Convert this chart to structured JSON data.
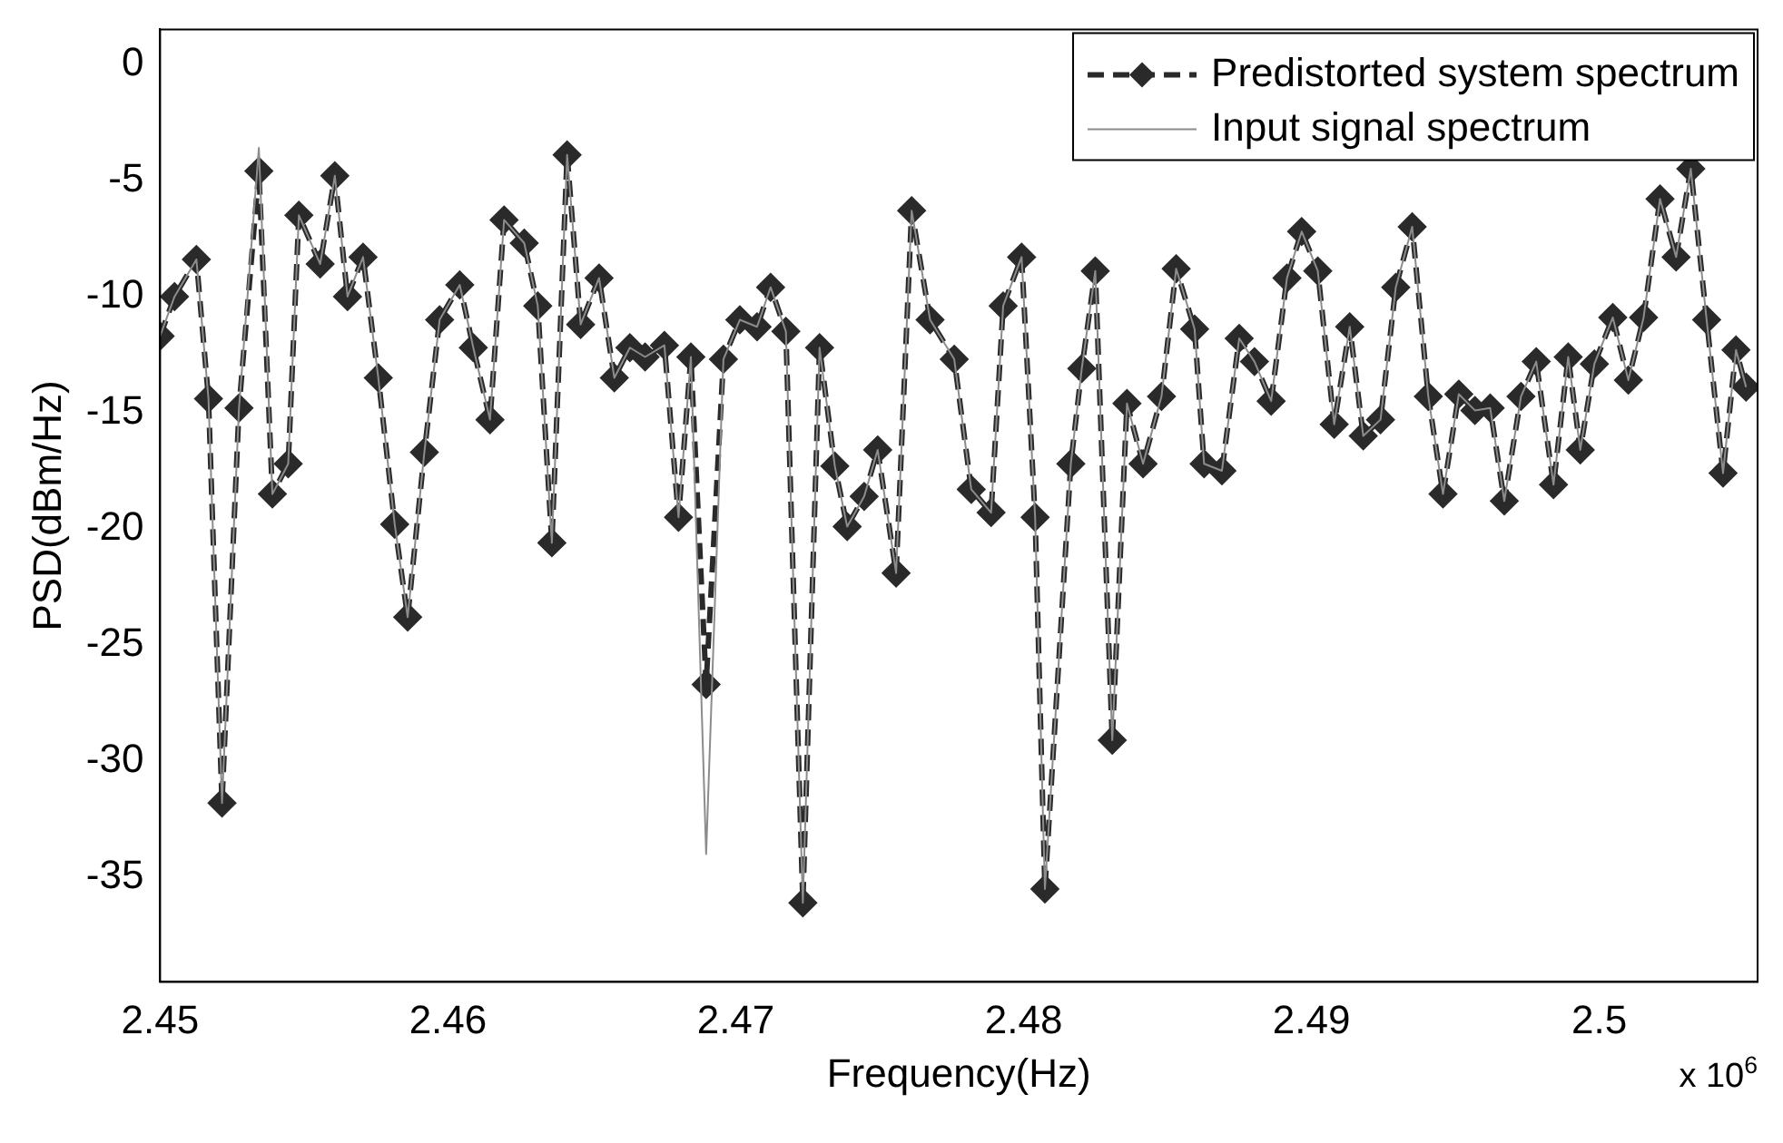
{
  "chart_data": {
    "type": "line",
    "xlabel": "Frequency(Hz)",
    "ylabel": "PSD(dBm/Hz)",
    "x": [
      2.45,
      2.4505,
      2.45126,
      2.45168,
      2.45215,
      2.45274,
      2.45343,
      2.4539,
      2.45445,
      2.45482,
      2.45556,
      2.45607,
      2.45651,
      2.45705,
      2.45758,
      2.45815,
      2.4586,
      2.45918,
      2.45971,
      2.46041,
      2.46088,
      2.46146,
      2.46195,
      2.46265,
      2.46312,
      2.46361,
      2.46414,
      2.46461,
      2.46525,
      2.46578,
      2.46632,
      2.46685,
      2.46752,
      2.46801,
      2.46844,
      2.46897,
      2.46957,
      2.47014,
      2.47074,
      2.47121,
      2.47174,
      2.47233,
      2.47291,
      2.47344,
      2.47387,
      2.47446,
      2.47493,
      2.47557,
      2.47611,
      2.47675,
      2.47759,
      2.47818,
      2.47887,
      2.47929,
      2.47993,
      2.4804,
      2.48074,
      2.48164,
      2.48202,
      2.48249,
      2.48308,
      2.48359,
      2.48415,
      2.48479,
      2.4853,
      2.48594,
      2.48627,
      2.48689,
      2.48749,
      2.48802,
      2.4886,
      2.48915,
      2.48966,
      2.49022,
      2.49079,
      2.49133,
      2.4918,
      2.4924,
      2.49293,
      2.4935,
      2.49406,
      2.49457,
      2.49512,
      2.49568,
      2.49621,
      2.4967,
      2.49728,
      2.49781,
      2.49841,
      2.49892,
      2.49934,
      2.49983,
      2.50047,
      2.50101,
      2.50154,
      2.50211,
      2.50267,
      2.50318,
      2.50373,
      2.5043,
      2.50475,
      2.5051
    ],
    "series": [
      {
        "name": "Predistorted system spectrum",
        "color": "#2a2a2a",
        "marker": "diamond",
        "line_style": "dashed",
        "values": [
          -11.7,
          -10.0,
          -8.4,
          -14.4,
          -31.8,
          -14.8,
          -4.6,
          -18.5,
          -17.2,
          -6.5,
          -8.6,
          -4.8,
          -10.0,
          -8.3,
          -13.5,
          -19.8,
          -23.8,
          -16.7,
          -11.0,
          -9.5,
          -12.2,
          -15.3,
          -6.7,
          -7.7,
          -10.4,
          -20.6,
          -3.9,
          -11.2,
          -9.2,
          -13.5,
          -12.2,
          -12.6,
          -12.1,
          -19.5,
          -12.6,
          -26.7,
          -12.7,
          -11.0,
          -11.3,
          -9.6,
          -11.5,
          -36.1,
          -12.2,
          -17.3,
          -19.9,
          -18.6,
          -16.6,
          -21.9,
          -6.3,
          -11.0,
          -12.7,
          -18.3,
          -19.3,
          -10.4,
          -8.3,
          -19.5,
          -35.5,
          -17.2,
          -13.1,
          -8.9,
          -29.1,
          -14.6,
          -17.2,
          -14.3,
          -8.8,
          -11.4,
          -17.2,
          -17.5,
          -11.8,
          -12.8,
          -14.5,
          -9.2,
          -7.2,
          -8.9,
          -15.5,
          -11.3,
          -16.0,
          -15.3,
          -9.6,
          -7.0,
          -14.3,
          -18.5,
          -14.2,
          -14.9,
          -14.8,
          -18.8,
          -14.3,
          -12.8,
          -18.1,
          -12.6,
          -16.6,
          -12.9,
          -10.9,
          -13.6,
          -10.9,
          -5.8,
          -8.3,
          -4.5,
          -11.0,
          -17.6,
          -12.3,
          -13.9
        ]
      },
      {
        "name": "Input signal spectrum",
        "color": "#8c8c8c",
        "marker": "none",
        "line_style": "solid",
        "values": [
          -11.7,
          -10.0,
          -8.4,
          -14.4,
          -31.8,
          -14.8,
          -3.6,
          -18.5,
          -17.2,
          -6.5,
          -8.6,
          -4.8,
          -10.0,
          -8.3,
          -13.5,
          -19.8,
          -23.8,
          -16.7,
          -11.0,
          -9.5,
          -12.2,
          -15.3,
          -6.7,
          -7.7,
          -10.4,
          -20.6,
          -3.9,
          -11.2,
          -9.2,
          -13.5,
          -12.2,
          -12.6,
          -12.1,
          -19.5,
          -12.6,
          -34.0,
          -12.7,
          -11.0,
          -11.3,
          -9.6,
          -11.5,
          -36.1,
          -12.2,
          -17.3,
          -19.9,
          -18.6,
          -16.6,
          -21.9,
          -6.3,
          -11.0,
          -12.7,
          -18.3,
          -19.3,
          -10.4,
          -8.3,
          -19.5,
          -35.5,
          -17.2,
          -13.1,
          -8.9,
          -29.1,
          -14.6,
          -17.2,
          -14.3,
          -8.8,
          -11.4,
          -17.2,
          -17.5,
          -11.8,
          -12.8,
          -14.5,
          -9.2,
          -7.2,
          -8.9,
          -15.5,
          -11.3,
          -16.0,
          -15.3,
          -9.6,
          -7.0,
          -14.3,
          -18.5,
          -14.2,
          -14.9,
          -14.8,
          -18.8,
          -14.3,
          -12.8,
          -18.1,
          -12.6,
          -16.6,
          -12.9,
          -10.9,
          -13.6,
          -10.9,
          -5.8,
          -8.3,
          -4.5,
          -11.0,
          -17.6,
          -12.3,
          -13.9
        ]
      }
    ],
    "xlim": [
      2.45,
      2.5055
    ],
    "xticks": [
      2.45,
      2.46,
      2.47,
      2.48,
      2.49,
      2.5
    ],
    "ylim": [
      -39.5,
      1.5
    ],
    "yticks": [
      0,
      -5,
      -10,
      -15,
      -20,
      -25,
      -30,
      -35
    ],
    "grid": false,
    "legend": "top right",
    "annotations": [
      "x 10$^{6}$"
    ]
  }
}
